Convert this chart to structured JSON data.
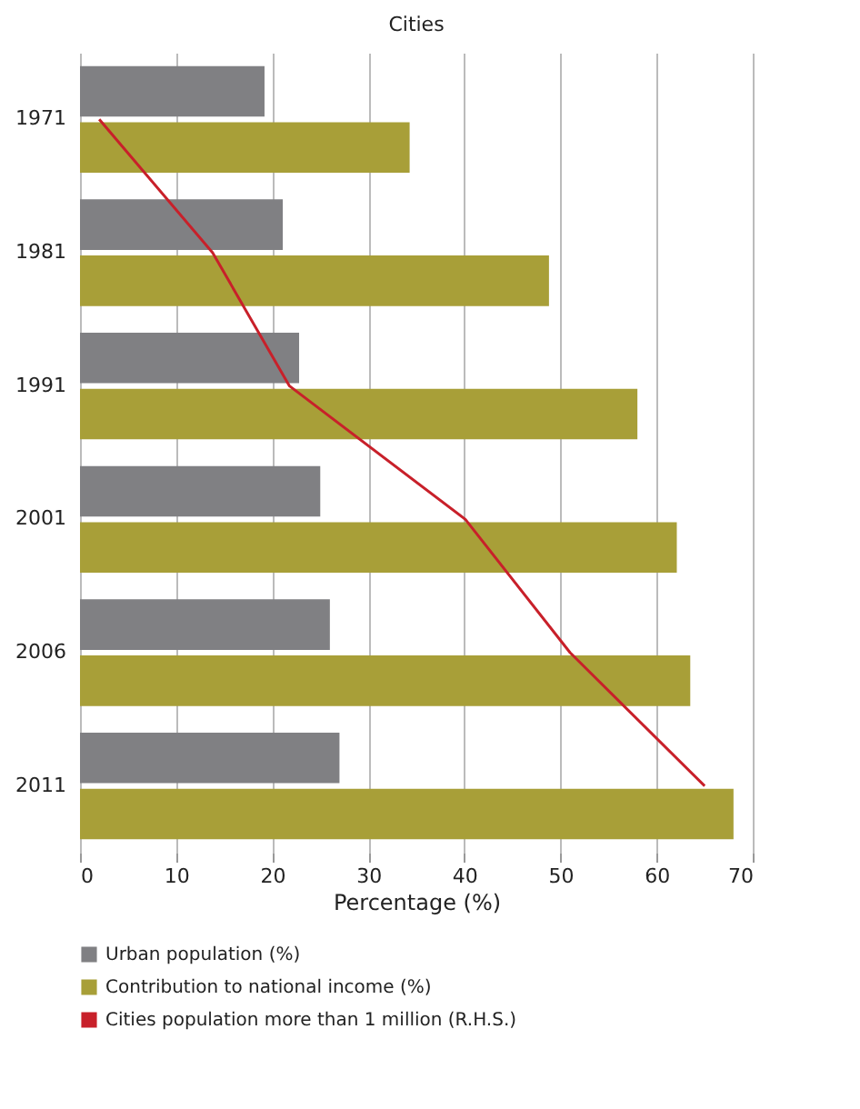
{
  "chart_data": {
    "type": "bar",
    "orientation": "horizontal",
    "title": "Cities",
    "xlabel": "Percentage (%)",
    "categories": [
      "1971",
      "1981",
      "1991",
      "2001",
      "2006",
      "2011"
    ],
    "series": [
      {
        "name": "Urban population (%)",
        "color": "#808083",
        "values": [
          19.2,
          21.1,
          22.8,
          25,
          26,
          27
        ]
      },
      {
        "name": "Contribution to national income (%)",
        "color": "#a89f38",
        "values": [
          34.3,
          48.8,
          58,
          62.1,
          63.5,
          68
        ]
      },
      {
        "name": "Cities population more than 1 million (R.H.S.)",
        "type": "line",
        "color": "#c8202a",
        "values": [
          2,
          13.8,
          21.8,
          40.1,
          51,
          65
        ]
      }
    ],
    "xlim": [
      0,
      70
    ],
    "xticks": [
      0,
      10,
      20,
      30,
      40,
      50,
      60,
      70
    ],
    "grid": "x",
    "legend": "bottom"
  }
}
